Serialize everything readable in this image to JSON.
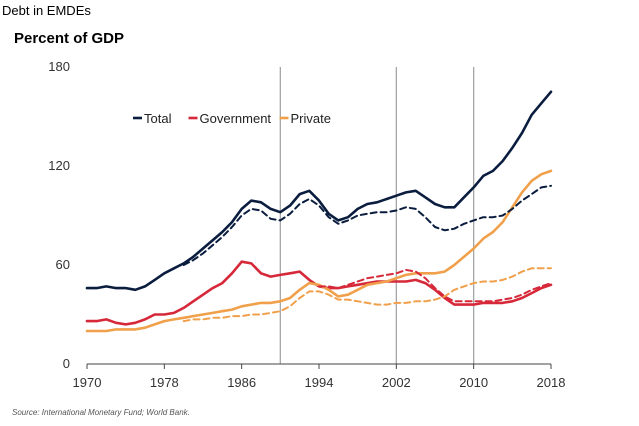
{
  "header": {
    "title": "Debt in EMDEs",
    "subtitle": "Percent of GDP"
  },
  "footer": {
    "source": "Source: International Monetary Fund; World Bank."
  },
  "chart_data": {
    "type": "line",
    "title": "Debt in EMDEs",
    "subtitle": "Percent of GDP",
    "xlabel": "",
    "ylabel": "",
    "xlim": [
      1970,
      2018
    ],
    "ylim": [
      0,
      180
    ],
    "xticks": [
      1970,
      1978,
      1986,
      1994,
      2002,
      2010,
      2018
    ],
    "yticks": [
      0,
      60,
      120,
      180
    ],
    "vlines": [
      1990,
      2002,
      2010
    ],
    "grid": false,
    "legend": {
      "placement": "top-left",
      "entries": [
        "Total",
        "Government",
        "Private"
      ]
    },
    "series": [
      {
        "name": "Total",
        "color": "#0b1d3f",
        "style": "solid",
        "x": [
          1970,
          1971,
          1972,
          1973,
          1974,
          1975,
          1976,
          1977,
          1978,
          1979,
          1980,
          1981,
          1982,
          1983,
          1984,
          1985,
          1986,
          1987,
          1988,
          1989,
          1990,
          1991,
          1992,
          1993,
          1994,
          1995,
          1996,
          1997,
          1998,
          1999,
          2000,
          2001,
          2002,
          2003,
          2004,
          2005,
          2006,
          2007,
          2008,
          2009,
          2010,
          2011,
          2012,
          2013,
          2014,
          2015,
          2016,
          2017,
          2018
        ],
        "y": [
          46,
          46,
          47,
          46,
          46,
          45,
          47,
          51,
          55,
          58,
          61,
          65,
          70,
          75,
          80,
          86,
          94,
          99,
          98,
          94,
          92,
          96,
          103,
          105,
          99,
          91,
          87,
          89,
          94,
          97,
          98,
          100,
          102,
          104,
          105,
          101,
          97,
          95,
          95,
          101,
          107,
          114,
          117,
          123,
          131,
          140,
          151,
          158,
          165
        ]
      },
      {
        "name": "Government",
        "color": "#d62839",
        "style": "solid",
        "x": [
          1970,
          1971,
          1972,
          1973,
          1974,
          1975,
          1976,
          1977,
          1978,
          1979,
          1980,
          1981,
          1982,
          1983,
          1984,
          1985,
          1986,
          1987,
          1988,
          1989,
          1990,
          1991,
          1992,
          1993,
          1994,
          1995,
          1996,
          1997,
          1998,
          1999,
          2000,
          2001,
          2002,
          2003,
          2004,
          2005,
          2006,
          2007,
          2008,
          2009,
          2010,
          2011,
          2012,
          2013,
          2014,
          2015,
          2016,
          2017,
          2018
        ],
        "y": [
          26,
          26,
          27,
          25,
          24,
          25,
          27,
          30,
          30,
          31,
          34,
          38,
          42,
          46,
          49,
          55,
          62,
          61,
          55,
          53,
          54,
          55,
          56,
          51,
          47,
          46,
          46,
          47,
          48,
          49,
          50,
          50,
          50,
          50,
          51,
          49,
          45,
          40,
          36,
          36,
          36,
          37,
          37,
          37,
          38,
          40,
          43,
          46,
          48
        ]
      },
      {
        "name": "Private",
        "color": "#f0a04b",
        "style": "solid",
        "x": [
          1970,
          1971,
          1972,
          1973,
          1974,
          1975,
          1976,
          1977,
          1978,
          1979,
          1980,
          1981,
          1982,
          1983,
          1984,
          1985,
          1986,
          1987,
          1988,
          1989,
          1990,
          1991,
          1992,
          1993,
          1994,
          1995,
          1996,
          1997,
          1998,
          1999,
          2000,
          2001,
          2002,
          2003,
          2004,
          2005,
          2006,
          2007,
          2008,
          2009,
          2010,
          2011,
          2012,
          2013,
          2014,
          2015,
          2016,
          2017,
          2018
        ],
        "y": [
          20,
          20,
          20,
          21,
          21,
          21,
          22,
          24,
          26,
          27,
          28,
          29,
          30,
          31,
          32,
          33,
          35,
          36,
          37,
          37,
          38,
          40,
          45,
          49,
          48,
          45,
          41,
          42,
          45,
          48,
          49,
          50,
          52,
          54,
          55,
          55,
          55,
          56,
          60,
          65,
          70,
          76,
          80,
          86,
          95,
          104,
          111,
          115,
          117
        ]
      },
      {
        "name": "",
        "color": "#0b1d3f",
        "style": "dashed",
        "x": [
          1980,
          1981,
          1982,
          1983,
          1984,
          1985,
          1986,
          1987,
          1988,
          1989,
          1990,
          1991,
          1992,
          1993,
          1994,
          1995,
          1996,
          1997,
          1998,
          1999,
          2000,
          2001,
          2002,
          2003,
          2004,
          2005,
          2006,
          2007,
          2008,
          2009,
          2010,
          2011,
          2012,
          2013,
          2014,
          2015,
          2016,
          2017,
          2018
        ],
        "y": [
          60,
          63,
          67,
          72,
          77,
          83,
          90,
          94,
          93,
          88,
          87,
          91,
          97,
          100,
          96,
          89,
          85,
          87,
          90,
          91,
          92,
          92,
          93,
          95,
          94,
          89,
          83,
          81,
          82,
          85,
          87,
          89,
          89,
          90,
          94,
          99,
          103,
          107,
          108
        ]
      },
      {
        "name": "",
        "color": "#d62839",
        "style": "dashed",
        "x": [
          1994,
          1995,
          1996,
          1997,
          1998,
          1999,
          2000,
          2001,
          2002,
          2003,
          2004,
          2005,
          2006,
          2007,
          2008,
          2009,
          2010,
          2011,
          2012,
          2013,
          2014,
          2015,
          2016,
          2017,
          2018
        ],
        "y": [
          47,
          47,
          46,
          48,
          50,
          52,
          53,
          54,
          55,
          57,
          56,
          52,
          46,
          41,
          38,
          38,
          38,
          38,
          38,
          39,
          40,
          42,
          45,
          47,
          49
        ]
      },
      {
        "name": "",
        "color": "#f0a04b",
        "style": "dashed",
        "x": [
          1980,
          1981,
          1982,
          1983,
          1984,
          1985,
          1986,
          1987,
          1988,
          1989,
          1990,
          1991,
          1992,
          1993,
          1994,
          1995,
          1996,
          1997,
          1998,
          1999,
          2000,
          2001,
          2002,
          2003,
          2004,
          2005,
          2006,
          2007,
          2008,
          2009,
          2010,
          2011,
          2012,
          2013,
          2014,
          2015,
          2016,
          2017,
          2018
        ],
        "y": [
          26,
          27,
          27,
          28,
          28,
          29,
          29,
          30,
          30,
          31,
          32,
          35,
          40,
          44,
          44,
          42,
          39,
          39,
          38,
          37,
          36,
          36,
          37,
          37,
          38,
          38,
          39,
          41,
          45,
          47,
          49,
          50,
          50,
          51,
          53,
          56,
          58,
          58,
          58
        ]
      }
    ]
  }
}
